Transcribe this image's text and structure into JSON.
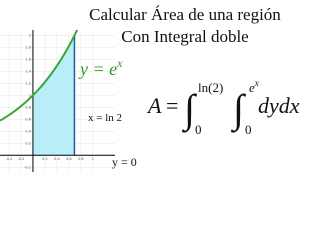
{
  "header": {
    "line1": "Calcular Área de una región",
    "line2": "Con Integral doble"
  },
  "graph": {
    "xlim": [
      -0.55,
      1.37
    ],
    "ylim": [
      -0.28,
      2.09
    ],
    "xticks": [
      -0.4,
      -0.2,
      0.2,
      0.4,
      0.6,
      0.8,
      1
    ],
    "yticks": [
      -0.2,
      0.2,
      0.4,
      0.6,
      0.8,
      1,
      1.2,
      1.4,
      1.6,
      1.8,
      2
    ],
    "grid": true,
    "shade_to": 0.693,
    "curve_color": "#3aa635",
    "shade_color": "#b8eef8",
    "bound_color": "#1f5fa0"
  },
  "labels": {
    "curve_base": "y = e",
    "curve_exp": "x",
    "bound": "x = ln 2",
    "axis": "y = 0"
  },
  "formula": {
    "lhs": "A",
    "equals": "=",
    "integral": "∫",
    "outer_upper": "ln(2)",
    "outer_lower": "0",
    "inner_upper_base": "e",
    "inner_upper_exp": "x",
    "inner_lower": "0",
    "differential": "dydx"
  }
}
